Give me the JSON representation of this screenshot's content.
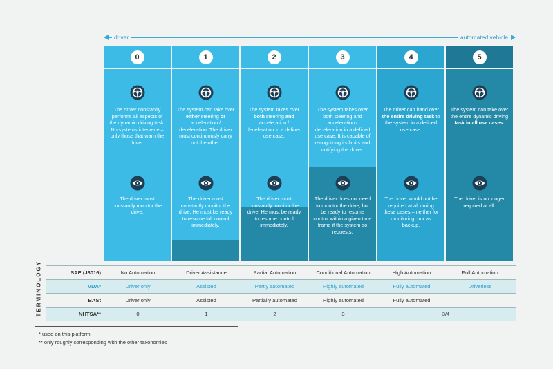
{
  "arrow": {
    "left": "driver",
    "right": "automated vehicle"
  },
  "levels": [
    {
      "num": "0",
      "icon": "steering-wheel-icon",
      "task_html": "The driver constantly performs all aspects of the dynamic driving task. No systems intervene – only those that warn the driver.",
      "monitor": "The driver must constantly monitor the drive."
    },
    {
      "num": "1",
      "icon": "steering-wheel-icon",
      "task_html": "The system can take over <b>either</b> steering <b>or</b> acceleration / deceleration. The driver must continuously carry out the other.",
      "monitor": "The driver must constantly monitor the drive. He must be ready to resume full control immediately."
    },
    {
      "num": "2",
      "icon": "steering-wheel-icon",
      "task_html": "The system takes over <b>both</b> steering <b>and</b> acceleration / deceleration in a defined use case.",
      "monitor": "The driver must constantly monitor the drive. He must be ready to resume control immediately."
    },
    {
      "num": "3",
      "icon": "steering-wheel-icon",
      "task_html": "The system takes over both steering and acceleration / deceleration in a defined use case. It is capable of recognizing its limits and notifying the driver.",
      "monitor": "The driver does not need to monitor the drive, but be ready to resume control within a given time frame if the system so requests."
    },
    {
      "num": "4",
      "icon": "steering-wheel-icon",
      "task_html": "The driver can hand over <b>the entire driving task</b> to the system in a defined use case.",
      "monitor": "The driver would not be required at all during these cases – neither for monitoring, nor as backup."
    },
    {
      "num": "5",
      "icon": "steering-wheel-icon",
      "task_html": "The system can take over the entire dynamic driving <b>task in all use cases.</b>",
      "monitor": "The driver is no longer required at all."
    }
  ],
  "terminology": {
    "title": "TERMINOLOGY",
    "rows": [
      {
        "label": "SAE (J3016)",
        "cells": [
          "No Automation",
          "Driver Assistance",
          "Partial Automation",
          "Conditional Automation",
          "High Automation",
          "Full Automation"
        ]
      },
      {
        "label": "VDA*",
        "cells": [
          "Driver only",
          "Assisted",
          "Partly automated",
          "Highly automated",
          "Fully automated",
          "Driverless"
        ]
      },
      {
        "label": "BASt",
        "cells": [
          "Driver only",
          "Assisted",
          "Partially automated",
          "Highly automated",
          "Fully automated",
          "——"
        ]
      },
      {
        "label": "NHTSA**",
        "cells": [
          "0",
          "1",
          "2",
          "3",
          "3/4"
        ]
      }
    ]
  },
  "footnotes": [
    "*   used on this platform",
    "** only roughly corresponding with the other taxonomies"
  ],
  "colors": {
    "light": "#3bbbe6",
    "mid": "#2aa6d0",
    "dark": "#2488a7",
    "darkest": "#1f7895"
  }
}
